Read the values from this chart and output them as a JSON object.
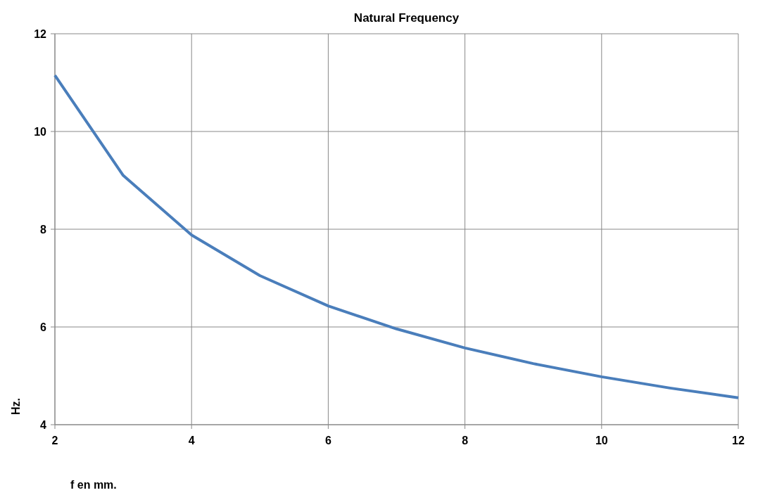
{
  "chart_data": {
    "type": "line",
    "title": "Natural Frequency",
    "xlabel": "f en mm.",
    "ylabel": "Hz.",
    "x": [
      2,
      3,
      4,
      5,
      6,
      7,
      8,
      9,
      10,
      11,
      12
    ],
    "series": [
      {
        "color": "#4a7ebb",
        "values": [
          11.15,
          9.1,
          7.88,
          7.05,
          6.43,
          5.96,
          5.57,
          5.25,
          4.98,
          4.75,
          4.55
        ]
      }
    ],
    "xlim": [
      2,
      12
    ],
    "xticks": [
      2,
      4,
      6,
      8,
      10,
      12
    ],
    "ylim": [
      4,
      12
    ],
    "yticks": [
      4,
      6,
      8,
      10,
      12
    ],
    "grid": true,
    "marker": "none",
    "line_style": "solid"
  }
}
